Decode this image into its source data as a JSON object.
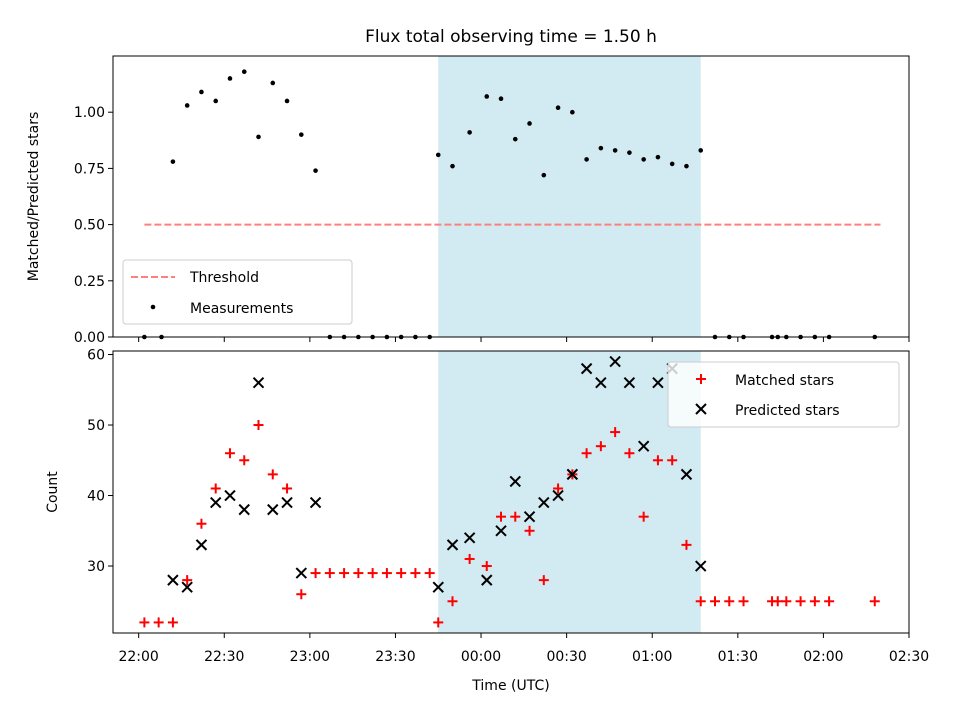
{
  "chart_data": [
    {
      "type": "scatter",
      "title": "Flux total observing time = 1.50 h",
      "xlabel": "",
      "ylabel": "Matched/Predicted stars",
      "xlim": [
        "21:51",
        "02:30"
      ],
      "ylim": [
        0,
        1.25
      ],
      "y_ticks": [
        "0.00",
        "0.25",
        "0.50",
        "0.75",
        "1.00"
      ],
      "y_tick_values": [
        0,
        0.25,
        0.5,
        0.75,
        1.0
      ],
      "shaded_span": [
        "23:45",
        "01:17"
      ],
      "legend": {
        "position": "lower-left",
        "entries": [
          "Threshold",
          "Measurements"
        ]
      },
      "threshold": {
        "name": "Threshold",
        "value": 0.5,
        "x_range": [
          "22:02",
          "02:20"
        ],
        "color": "#ff7f7f"
      },
      "series": [
        {
          "name": "Measurements",
          "color": "#000000",
          "x": [
            "22:02",
            "22:08",
            "22:12",
            "22:17",
            "22:22",
            "22:27",
            "22:32",
            "22:37",
            "22:42",
            "22:47",
            "22:52",
            "22:57",
            "23:02",
            "23:07",
            "23:12",
            "23:17",
            "23:22",
            "23:27",
            "23:32",
            "23:37",
            "23:42",
            "23:45",
            "23:50",
            "23:56",
            "00:02",
            "00:07",
            "00:12",
            "00:17",
            "00:22",
            "00:27",
            "00:32",
            "00:37",
            "00:42",
            "00:47",
            "00:52",
            "00:57",
            "01:02",
            "01:07",
            "01:12",
            "01:17",
            "01:22",
            "01:27",
            "01:32",
            "01:42",
            "01:44",
            "01:47",
            "01:52",
            "01:57",
            "02:02",
            "02:18"
          ],
          "y": [
            0,
            0,
            0.78,
            1.03,
            1.09,
            1.05,
            1.15,
            1.18,
            0.89,
            1.13,
            1.05,
            0.9,
            0.74,
            0,
            0,
            0,
            0,
            0,
            0,
            0,
            0,
            0.81,
            0.76,
            0.91,
            1.07,
            1.06,
            0.88,
            0.95,
            0.72,
            1.02,
            1.0,
            0.79,
            0.84,
            0.83,
            0.82,
            0.79,
            0.8,
            0.77,
            0.76,
            0.83,
            0,
            0,
            0,
            0,
            0,
            0,
            0,
            0,
            0,
            0
          ]
        }
      ]
    },
    {
      "type": "scatter",
      "title": "",
      "xlabel": "Time (UTC)",
      "ylabel": "Count",
      "xlim": [
        "21:51",
        "02:30"
      ],
      "ylim": [
        20.5,
        60.5
      ],
      "y_ticks": [
        "30",
        "40",
        "50",
        "60"
      ],
      "y_tick_values": [
        30,
        40,
        50,
        60
      ],
      "x_ticks": [
        "22:00",
        "22:30",
        "23:00",
        "23:30",
        "00:00",
        "00:30",
        "01:00",
        "01:30",
        "02:00",
        "02:30"
      ],
      "shaded_span": [
        "23:45",
        "01:17"
      ],
      "legend": {
        "position": "top-right",
        "entries": [
          "Matched stars",
          "Predicted stars"
        ]
      },
      "series": [
        {
          "name": "Matched stars",
          "color": "#ff0000",
          "x": [
            "22:02",
            "22:07",
            "22:12",
            "22:17",
            "22:22",
            "22:27",
            "22:32",
            "22:37",
            "22:42",
            "22:47",
            "22:52",
            "22:57",
            "23:02",
            "23:07",
            "23:12",
            "23:17",
            "23:22",
            "23:27",
            "23:32",
            "23:37",
            "23:42",
            "23:45",
            "23:50",
            "23:56",
            "00:02",
            "00:07",
            "00:12",
            "00:17",
            "00:22",
            "00:27",
            "00:32",
            "00:37",
            "00:42",
            "00:47",
            "00:52",
            "00:57",
            "01:02",
            "01:07",
            "01:12",
            "01:17",
            "01:22",
            "01:27",
            "01:32",
            "01:42",
            "01:44",
            "01:47",
            "01:52",
            "01:57",
            "02:02",
            "02:18"
          ],
          "y": [
            22,
            22,
            22,
            28,
            36,
            41,
            46,
            45,
            50,
            43,
            41,
            26,
            29,
            29,
            29,
            29,
            29,
            29,
            29,
            29,
            29,
            22,
            25,
            31,
            30,
            37,
            37,
            35,
            28,
            41,
            43,
            46,
            47,
            49,
            46,
            37,
            45,
            45,
            33,
            25,
            25,
            25,
            25,
            25,
            25,
            25,
            25,
            25,
            25,
            25
          ]
        },
        {
          "name": "Predicted stars",
          "color": "#000000",
          "x": [
            "22:12",
            "22:17",
            "22:22",
            "22:27",
            "22:32",
            "22:37",
            "22:42",
            "22:47",
            "22:52",
            "22:57",
            "23:02",
            "23:45",
            "23:50",
            "23:56",
            "00:02",
            "00:07",
            "00:12",
            "00:17",
            "00:22",
            "00:27",
            "00:32",
            "00:37",
            "00:42",
            "00:47",
            "00:52",
            "00:57",
            "01:02",
            "01:07",
            "01:12",
            "01:17"
          ],
          "y": [
            28,
            27,
            33,
            39,
            40,
            38,
            56,
            38,
            39,
            29,
            39,
            27,
            33,
            34,
            28,
            35,
            42,
            37,
            39,
            40,
            43,
            58,
            56,
            59,
            56,
            47,
            56,
            58,
            43,
            30
          ]
        }
      ]
    }
  ]
}
